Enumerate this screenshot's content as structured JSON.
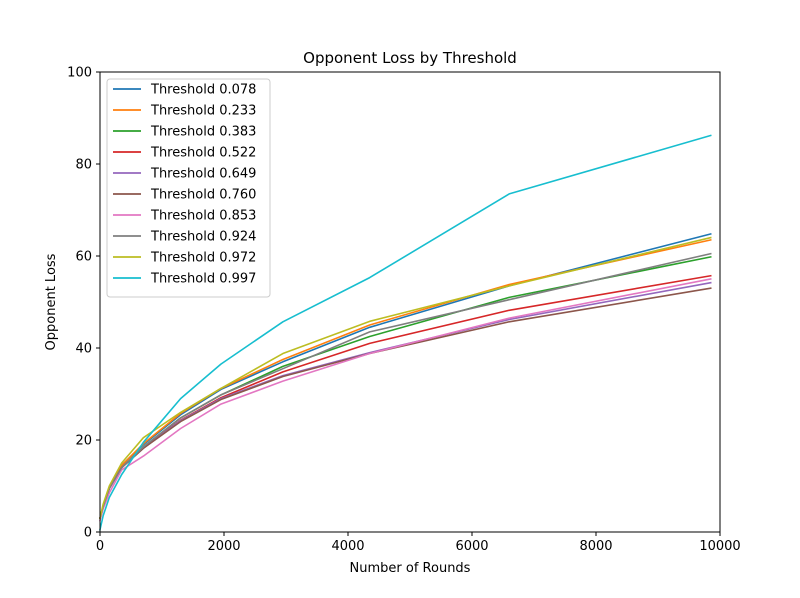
{
  "chart_data": {
    "type": "line",
    "title": "Opponent Loss by Threshold",
    "xlabel": "Number of Rounds",
    "ylabel": "Opponent Loss",
    "xlim": [
      0,
      10000
    ],
    "ylim": [
      0,
      100
    ],
    "xticks": [
      0,
      2000,
      4000,
      6000,
      8000,
      10000
    ],
    "yticks": [
      0,
      20,
      40,
      60,
      80,
      100
    ],
    "grid": false,
    "legend_position": "upper-left",
    "x": [
      0,
      50,
      150,
      350,
      700,
      1300,
      1950,
      2950,
      4350,
      6600,
      9850
    ],
    "series": [
      {
        "name": "Threshold 0.078",
        "color": "#1f77b4",
        "values": [
          3.0,
          5.5,
          9.5,
          14.5,
          19.0,
          25.5,
          31.0,
          37.0,
          44.5,
          53.5,
          64.8
        ]
      },
      {
        "name": "Threshold 0.233",
        "color": "#ff7f0e",
        "values": [
          3.0,
          5.5,
          9.5,
          14.5,
          19.2,
          25.8,
          31.2,
          37.5,
          45.0,
          53.8,
          63.5
        ]
      },
      {
        "name": "Threshold 0.383",
        "color": "#2ca02c",
        "values": [
          3.0,
          5.5,
          9.5,
          14.0,
          18.5,
          24.8,
          29.8,
          36.0,
          42.5,
          51.0,
          59.8
        ]
      },
      {
        "name": "Threshold 0.522",
        "color": "#d62728",
        "values": [
          3.0,
          5.5,
          9.5,
          14.0,
          18.3,
          24.3,
          29.2,
          34.8,
          41.0,
          48.2,
          55.7
        ]
      },
      {
        "name": "Threshold 0.649",
        "color": "#9467bd",
        "values": [
          3.0,
          5.5,
          9.5,
          14.0,
          18.2,
          24.2,
          29.0,
          34.0,
          39.0,
          46.2,
          54.2
        ]
      },
      {
        "name": "Threshold 0.760",
        "color": "#8c564b",
        "values": [
          3.0,
          5.5,
          9.5,
          14.0,
          18.2,
          24.0,
          28.8,
          33.8,
          38.8,
          45.7,
          53.0
        ]
      },
      {
        "name": "Threshold 0.853",
        "color": "#e377c2",
        "values": [
          2.5,
          5.0,
          8.5,
          13.5,
          16.5,
          22.5,
          27.8,
          32.8,
          38.8,
          46.5,
          55.0
        ]
      },
      {
        "name": "Threshold 0.924",
        "color": "#7f7f7f",
        "values": [
          3.0,
          5.5,
          9.5,
          14.0,
          18.5,
          24.8,
          29.8,
          35.5,
          43.5,
          50.5,
          60.5
        ]
      },
      {
        "name": "Threshold 0.972",
        "color": "#bcbd22",
        "values": [
          3.0,
          6.0,
          10.0,
          15.0,
          20.5,
          26.0,
          31.2,
          38.8,
          45.8,
          53.5,
          64.0
        ]
      },
      {
        "name": "Threshold 0.997",
        "color": "#17becf",
        "values": [
          0.5,
          3.5,
          7.5,
          12.5,
          19.5,
          29.0,
          36.5,
          45.7,
          55.3,
          73.5,
          86.2
        ]
      }
    ]
  }
}
